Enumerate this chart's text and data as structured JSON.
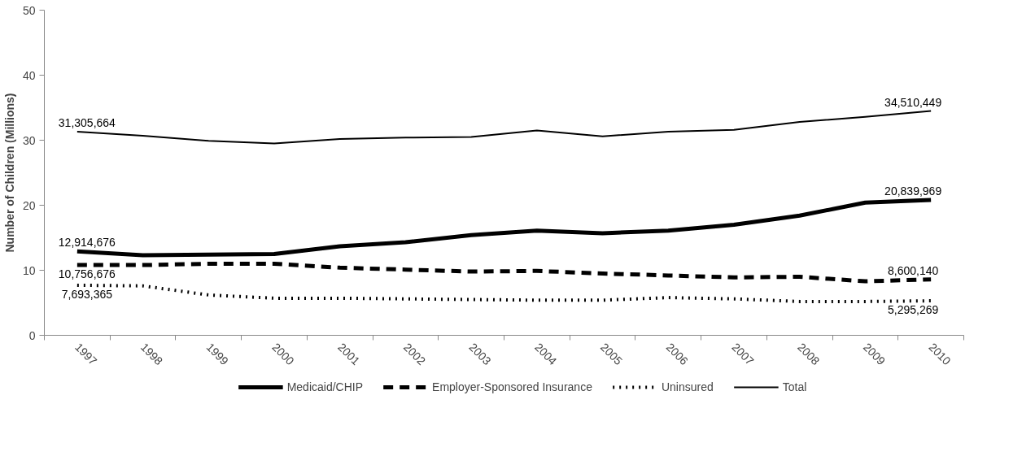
{
  "chart_data": {
    "type": "line",
    "ylabel": "Number of Children (Millions)",
    "categories": [
      "1997",
      "1998",
      "1999",
      "2000",
      "2001",
      "2002",
      "2003",
      "2004",
      "2005",
      "2006",
      "2007",
      "2008",
      "2009",
      "2010"
    ],
    "series": [
      {
        "name": "Medicaid/CHIP",
        "color": "#000000",
        "line_style": "solid",
        "values": [
          12.9,
          12.3,
          12.4,
          12.5,
          13.7,
          14.3,
          15.4,
          16.1,
          15.7,
          16.1,
          17.0,
          18.4,
          20.4,
          20.8
        ]
      },
      {
        "name": "Employer-Sponsored Insurance",
        "color": "#000000",
        "line_style": "dashed",
        "values": [
          10.8,
          10.8,
          11.0,
          11.0,
          10.4,
          10.1,
          9.8,
          9.9,
          9.5,
          9.2,
          8.9,
          9.0,
          8.3,
          8.6
        ]
      },
      {
        "name": "Uninsured",
        "color": "#000000",
        "line_style": "dotted",
        "values": [
          7.7,
          7.6,
          6.2,
          5.7,
          5.7,
          5.6,
          5.5,
          5.4,
          5.4,
          5.8,
          5.6,
          5.2,
          5.2,
          5.3
        ]
      },
      {
        "name": "Total",
        "color": "#000000",
        "line_style": "solid",
        "values": [
          31.3,
          30.7,
          29.9,
          29.5,
          30.2,
          30.4,
          30.5,
          31.5,
          30.6,
          31.3,
          31.6,
          32.8,
          33.6,
          34.5
        ]
      }
    ],
    "annotations": [
      {
        "text": "12,914,676",
        "x": "1997",
        "y": 12.9
      },
      {
        "text": "20,839,969",
        "x": "2010",
        "y": 20.8
      },
      {
        "text": "10,756,676",
        "x": "1997",
        "y": 10.8
      },
      {
        "text": "8,600,140",
        "x": "2010",
        "y": 8.6
      },
      {
        "text": "7,693,365",
        "x": "1997",
        "y": 7.7
      },
      {
        "text": "5,295,269",
        "x": "2010",
        "y": 5.3
      },
      {
        "text": "31,305,664",
        "x": "1997",
        "y": 31.3
      },
      {
        "text": "34,510,449",
        "x": "2010",
        "y": 34.5
      }
    ],
    "ylim": [
      0,
      50
    ],
    "yticks": [
      0,
      10,
      20,
      30,
      40,
      50
    ],
    "grid": false,
    "legend": "bottom",
    "marker": "none"
  }
}
